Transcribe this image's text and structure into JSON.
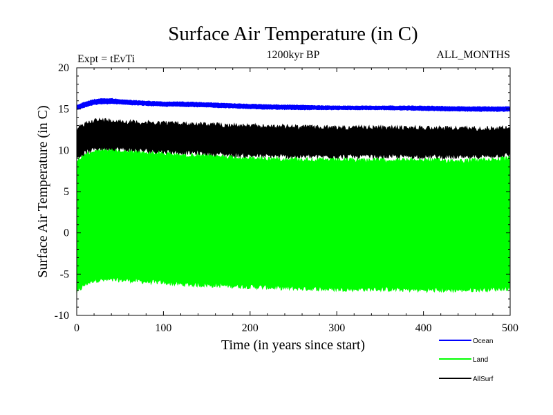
{
  "chart_data": {
    "type": "line",
    "title": "Surface Air Temperature (in C)",
    "subtitle": "1200kyr BP",
    "experiment_label": "Expt = tEvTi",
    "months_label": "ALL_MONTHS",
    "xlabel": "Time (in years since start)",
    "ylabel": "Surface Air Temperature (in C)",
    "xlim": [
      0,
      500
    ],
    "ylim": [
      -10,
      20
    ],
    "xticks": [
      0,
      100,
      200,
      300,
      400,
      500
    ],
    "yticks": [
      -10,
      -5,
      0,
      5,
      10,
      15,
      20
    ],
    "grid": false,
    "legend_position": "bottom-right",
    "series": [
      {
        "name": "Ocean",
        "color": "#0000ff",
        "x": [
          0,
          10,
          20,
          30,
          40,
          50,
          60,
          80,
          100,
          120,
          150,
          180,
          200,
          250,
          300,
          350,
          400,
          450,
          500
        ],
        "min": [
          14.9,
          15.2,
          15.5,
          15.6,
          15.6,
          15.6,
          15.5,
          15.4,
          15.3,
          15.3,
          15.2,
          15.1,
          15.0,
          14.9,
          14.9,
          14.9,
          14.8,
          14.7,
          14.7
        ],
        "max": [
          15.5,
          15.9,
          16.2,
          16.3,
          16.3,
          16.2,
          16.1,
          16.0,
          15.9,
          15.9,
          15.8,
          15.7,
          15.6,
          15.5,
          15.4,
          15.4,
          15.4,
          15.3,
          15.3
        ]
      },
      {
        "name": "Land",
        "color": "#00ff00",
        "x": [
          0,
          10,
          20,
          30,
          40,
          50,
          60,
          80,
          100,
          120,
          150,
          180,
          200,
          250,
          300,
          350,
          400,
          450,
          500
        ],
        "min": [
          -7.5,
          -6.5,
          -6.0,
          -6.0,
          -6.0,
          -6.0,
          -6.0,
          -6.2,
          -6.3,
          -6.5,
          -6.6,
          -6.7,
          -6.8,
          -7.0,
          -7.1,
          -7.1,
          -7.2,
          -7.2,
          -7.0
        ],
        "max": [
          9.0,
          9.8,
          10.2,
          10.3,
          10.3,
          10.2,
          10.1,
          10.0,
          9.9,
          9.7,
          9.6,
          9.5,
          9.3,
          9.2,
          9.1,
          9.1,
          9.1,
          9.0,
          9.3
        ]
      },
      {
        "name": "AllSurf",
        "color": "#000000",
        "x": [
          0,
          10,
          20,
          30,
          40,
          50,
          60,
          80,
          100,
          120,
          150,
          180,
          200,
          250,
          300,
          350,
          400,
          450,
          500
        ],
        "min": [
          8.8,
          9.5,
          9.9,
          10.0,
          10.0,
          9.9,
          9.8,
          9.7,
          9.6,
          9.5,
          9.4,
          9.2,
          9.1,
          9.0,
          9.0,
          9.0,
          9.0,
          8.9,
          9.2
        ],
        "max": [
          12.8,
          13.5,
          13.9,
          13.9,
          13.9,
          13.8,
          13.7,
          13.6,
          13.6,
          13.5,
          13.4,
          13.3,
          13.2,
          13.1,
          13.0,
          13.0,
          13.0,
          12.9,
          13.0
        ]
      }
    ]
  }
}
